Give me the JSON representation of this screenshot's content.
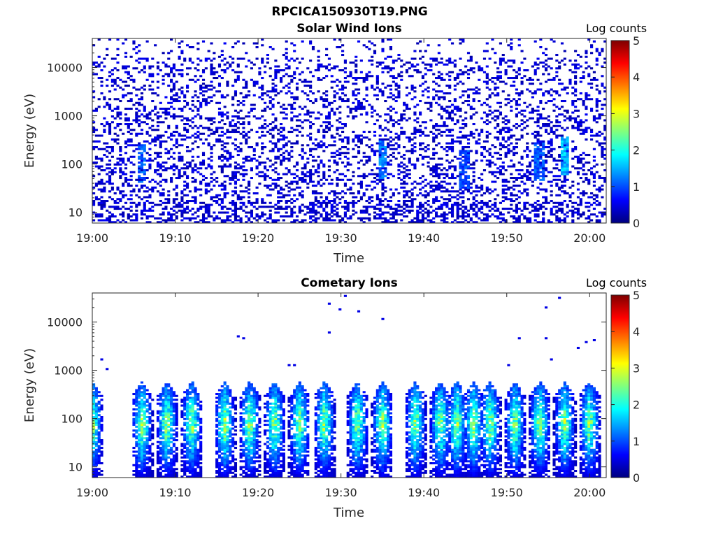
{
  "figure": {
    "title": "RPCICA150930T19.PNG"
  },
  "colormap": {
    "name": "jet",
    "stops": [
      "#00007f",
      "#0000ff",
      "#007fff",
      "#00ffff",
      "#7fff7f",
      "#ffff00",
      "#ff7f00",
      "#ff0000",
      "#7f0000"
    ]
  },
  "chart_data": [
    {
      "type": "heatmap",
      "title": "Solar Wind Ions",
      "xlabel": "Time",
      "ylabel": "Energy (eV)",
      "x_range": [
        "19:00",
        "20:02"
      ],
      "x_ticks": [
        "19:00",
        "19:10",
        "19:20",
        "19:30",
        "19:40",
        "19:50",
        "20:00"
      ],
      "y_scale": "log",
      "y_range": [
        6,
        40000
      ],
      "y_ticks": [
        "10",
        "100",
        "1000",
        "10000"
      ],
      "colorbar": {
        "label": "Log counts",
        "range": [
          0,
          5
        ],
        "ticks": [
          "0",
          "1",
          "2",
          "3",
          "4",
          "5"
        ]
      },
      "description_values": {
        "background_level_log_counts": 0.3,
        "notable_bursts": [
          {
            "time": "19:06",
            "energy_ev": 100,
            "log_counts": 1.3
          },
          {
            "time": "19:35",
            "energy_ev": 120,
            "log_counts": 1.5
          },
          {
            "time": "19:45",
            "energy_ev": 80,
            "log_counts": 1.2
          },
          {
            "time": "19:54",
            "energy_ev": 110,
            "log_counts": 1.3
          },
          {
            "time": "19:57",
            "energy_ev": 150,
            "log_counts": 1.9
          }
        ]
      }
    },
    {
      "type": "heatmap",
      "title": "Cometary Ions",
      "xlabel": "Time",
      "ylabel": "Energy (eV)",
      "x_range": [
        "19:00",
        "20:02"
      ],
      "x_ticks": [
        "19:00",
        "19:10",
        "19:20",
        "19:30",
        "19:40",
        "19:50",
        "20:00"
      ],
      "y_scale": "log",
      "y_range": [
        6,
        40000
      ],
      "y_ticks": [
        "10",
        "100",
        "1000",
        "10000"
      ],
      "colorbar": {
        "label": "Log counts",
        "range": [
          0,
          5
        ],
        "ticks": [
          "0",
          "1",
          "2",
          "3",
          "4",
          "5"
        ]
      },
      "description_values": {
        "pulse_times": [
          "19:00",
          "19:06",
          "19:09",
          "19:12",
          "19:16",
          "19:19",
          "19:22",
          "19:25",
          "19:28",
          "19:32",
          "19:35",
          "19:39",
          "19:42",
          "19:44",
          "19:46",
          "19:48",
          "19:51",
          "19:54",
          "19:57",
          "20:00"
        ],
        "pulse_energy_range_ev": [
          6,
          600
        ],
        "peak_log_counts": 2.9
      }
    }
  ]
}
